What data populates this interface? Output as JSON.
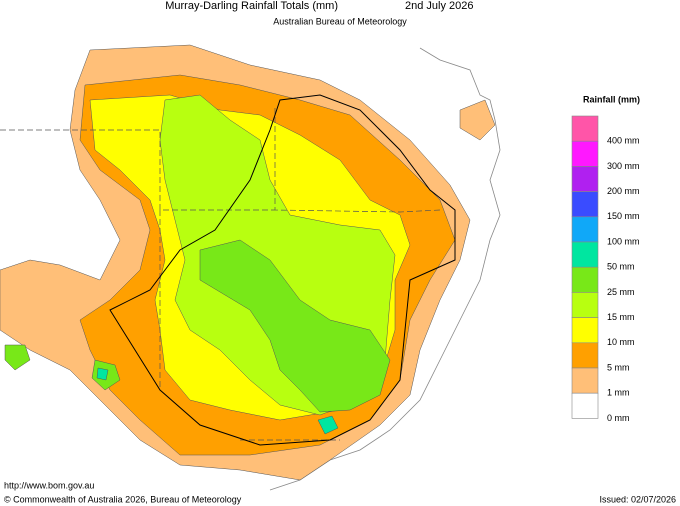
{
  "header": {
    "title": "Murray-Darling Rainfall Totals (mm)",
    "date": "2nd July 2026",
    "subtitle": "Australian Bureau of Meteorology"
  },
  "legend": {
    "title": "Rainfall (mm)",
    "items": [
      {
        "color": "#ff55a8",
        "label": null
      },
      {
        "color": "#ff18ff",
        "label": "400 mm"
      },
      {
        "color": "#b020f0",
        "label": "300 mm"
      },
      {
        "color": "#3a4cff",
        "label": "200 mm"
      },
      {
        "color": "#10a8f8",
        "label": "150 mm"
      },
      {
        "color": "#00e6a0",
        "label": "100 mm"
      },
      {
        "color": "#78e818",
        "label": "50 mm"
      },
      {
        "color": "#b8ff10",
        "label": "25 mm"
      },
      {
        "color": "#ffff00",
        "label": "15 mm"
      },
      {
        "color": "#ffa000",
        "label": "10 mm"
      },
      {
        "color": "#ffbf78",
        "label": "5 mm"
      },
      {
        "color": "#ffffff",
        "label": "1 mm"
      }
    ],
    "bottom_label": "0 mm"
  },
  "footer": {
    "url": "http://www.bom.gov.au",
    "copyright": "© Commonwealth of Australia 2026, Bureau of Meteorology",
    "issued": "Issued: 02/07/2026"
  }
}
